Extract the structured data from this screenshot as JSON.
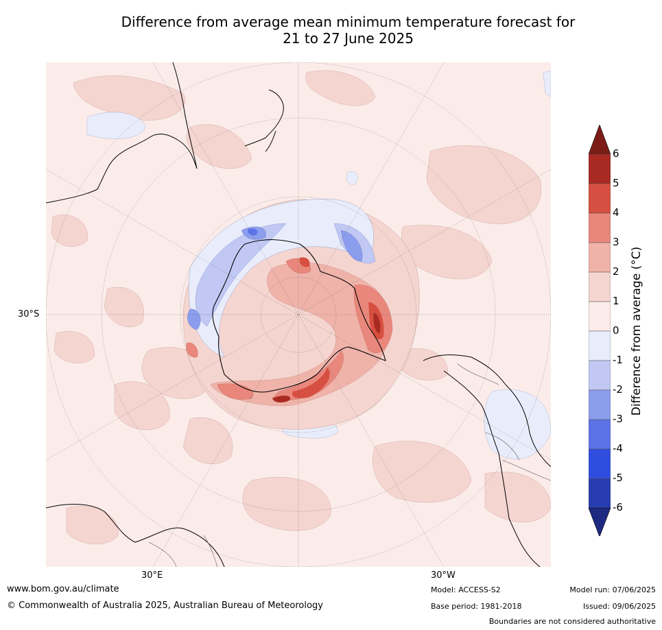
{
  "title_line1": "Difference from average mean minimum temperature forecast for",
  "title_line2": "21 to 27 June 2025",
  "map": {
    "projection": "south-polar-stereographic",
    "lat_label": "30°S",
    "lon_labels": [
      "30°E",
      "30°W"
    ]
  },
  "colorbar": {
    "title": "Difference from average (°C)",
    "ticks": [
      "6",
      "5",
      "4",
      "3",
      "2",
      "1",
      "0",
      "-1",
      "-2",
      "-3",
      "-4",
      "-5",
      "-6"
    ],
    "colors": [
      "#7b1d16",
      "#a82a22",
      "#d64f40",
      "#e9877c",
      "#efb3aa",
      "#f5d5d0",
      "#fbece9",
      "#e9edfb",
      "#c0c8f3",
      "#8b9ded",
      "#5b73e6",
      "#2f4ee0",
      "#283db0",
      "#1e2a80"
    ]
  },
  "footer": {
    "website": "www.bom.gov.au/climate",
    "copyright": "© Commonwealth of Australia 2025, Australian Bureau of Meteorology",
    "model": "Model: ACCESS-S2",
    "base_period": "Base period: 1981-2018",
    "model_run": "Model run: 07/06/2025",
    "issued": "Issued: 09/06/2025",
    "disclaimer": "Boundaries are not considered authoritative"
  }
}
